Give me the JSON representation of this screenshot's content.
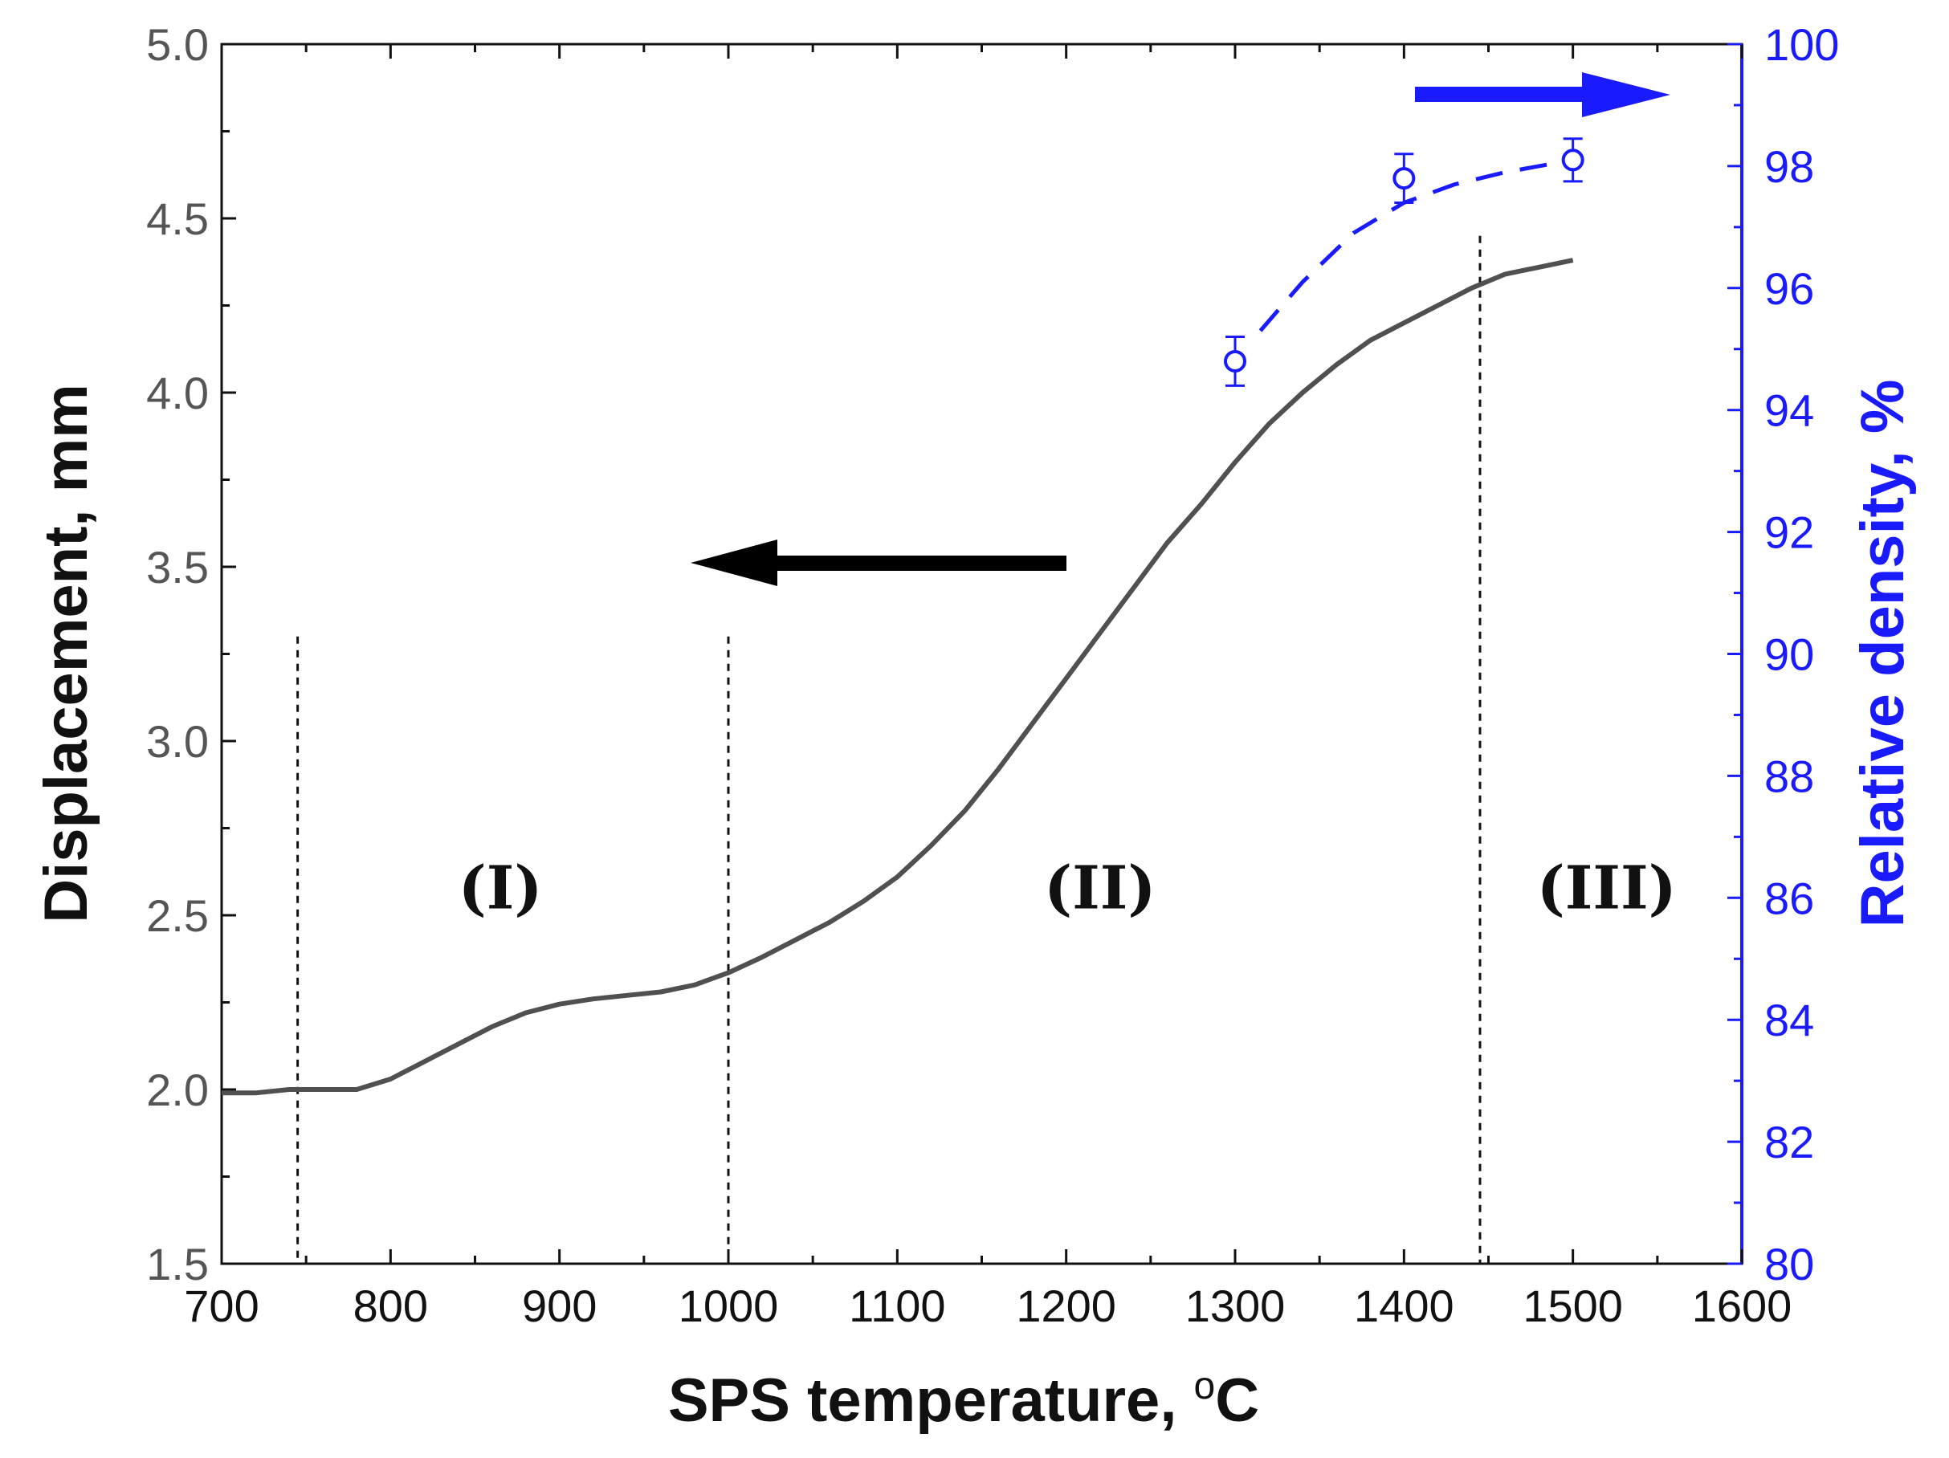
{
  "chart_data": {
    "type": "line",
    "xlabel": "SPS temperature, ",
    "xlabel_unit_sup": "o",
    "xlabel_unit": "C",
    "ylabel_left": "Displacement, mm",
    "ylabel_right": "Relative density, %",
    "xlim": [
      700,
      1600
    ],
    "ylim_left": [
      1.5,
      5.0
    ],
    "ylim_right": [
      80,
      100
    ],
    "x_ticks": [
      "700",
      "800",
      "900",
      "1000",
      "1100",
      "1200",
      "1300",
      "1400",
      "1500",
      "1600"
    ],
    "y_left_ticks": [
      "1.5",
      "2.0",
      "2.5",
      "3.0",
      "3.5",
      "4.0",
      "4.5",
      "5.0"
    ],
    "y_right_ticks": [
      "80",
      "82",
      "84",
      "86",
      "88",
      "90",
      "92",
      "94",
      "96",
      "98",
      "100"
    ],
    "colors": {
      "displacement": "#505050",
      "density": "#1a1aff",
      "axis_left": "#111111",
      "axis_right": "#1a1aff",
      "arrow_left": "#000000",
      "arrow_right": "#1a1aff"
    },
    "series": [
      {
        "name": "Displacement",
        "axis": "left",
        "x": [
          700,
          720,
          740,
          760,
          780,
          800,
          820,
          840,
          860,
          880,
          900,
          920,
          940,
          960,
          980,
          1000,
          1020,
          1040,
          1060,
          1080,
          1100,
          1120,
          1140,
          1160,
          1180,
          1200,
          1220,
          1240,
          1260,
          1280,
          1300,
          1320,
          1340,
          1360,
          1380,
          1400,
          1420,
          1440,
          1460,
          1480,
          1500
        ],
        "y": [
          1.99,
          1.99,
          2.0,
          2.0,
          2.0,
          2.03,
          2.08,
          2.13,
          2.18,
          2.22,
          2.245,
          2.26,
          2.27,
          2.28,
          2.3,
          2.335,
          2.38,
          2.43,
          2.48,
          2.54,
          2.61,
          2.7,
          2.8,
          2.92,
          3.05,
          3.18,
          3.31,
          3.44,
          3.57,
          3.68,
          3.8,
          3.91,
          4.0,
          4.08,
          4.15,
          4.2,
          4.25,
          4.3,
          4.34,
          4.36,
          4.38
        ]
      },
      {
        "name": "Relative density",
        "axis": "right",
        "x": [
          1300,
          1400,
          1500
        ],
        "y": [
          94.8,
          97.8,
          98.1
        ],
        "error": [
          0.4,
          0.4,
          0.35
        ],
        "fit_x": [
          1315,
          1340,
          1370,
          1400,
          1430,
          1460,
          1490
        ],
        "fit_y": [
          95.3,
          96.1,
          96.9,
          97.4,
          97.7,
          97.9,
          98.05
        ]
      }
    ],
    "vertical_lines_x": [
      745,
      1000,
      1445
    ],
    "regions": [
      {
        "label": "(I)",
        "x": 865
      },
      {
        "label": "(II)",
        "x": 1220
      },
      {
        "label": "(III)",
        "x": 1520
      }
    ],
    "annotations": [
      "left-arrow: displacement on left axis",
      "right-arrow: relative density on right axis"
    ]
  }
}
